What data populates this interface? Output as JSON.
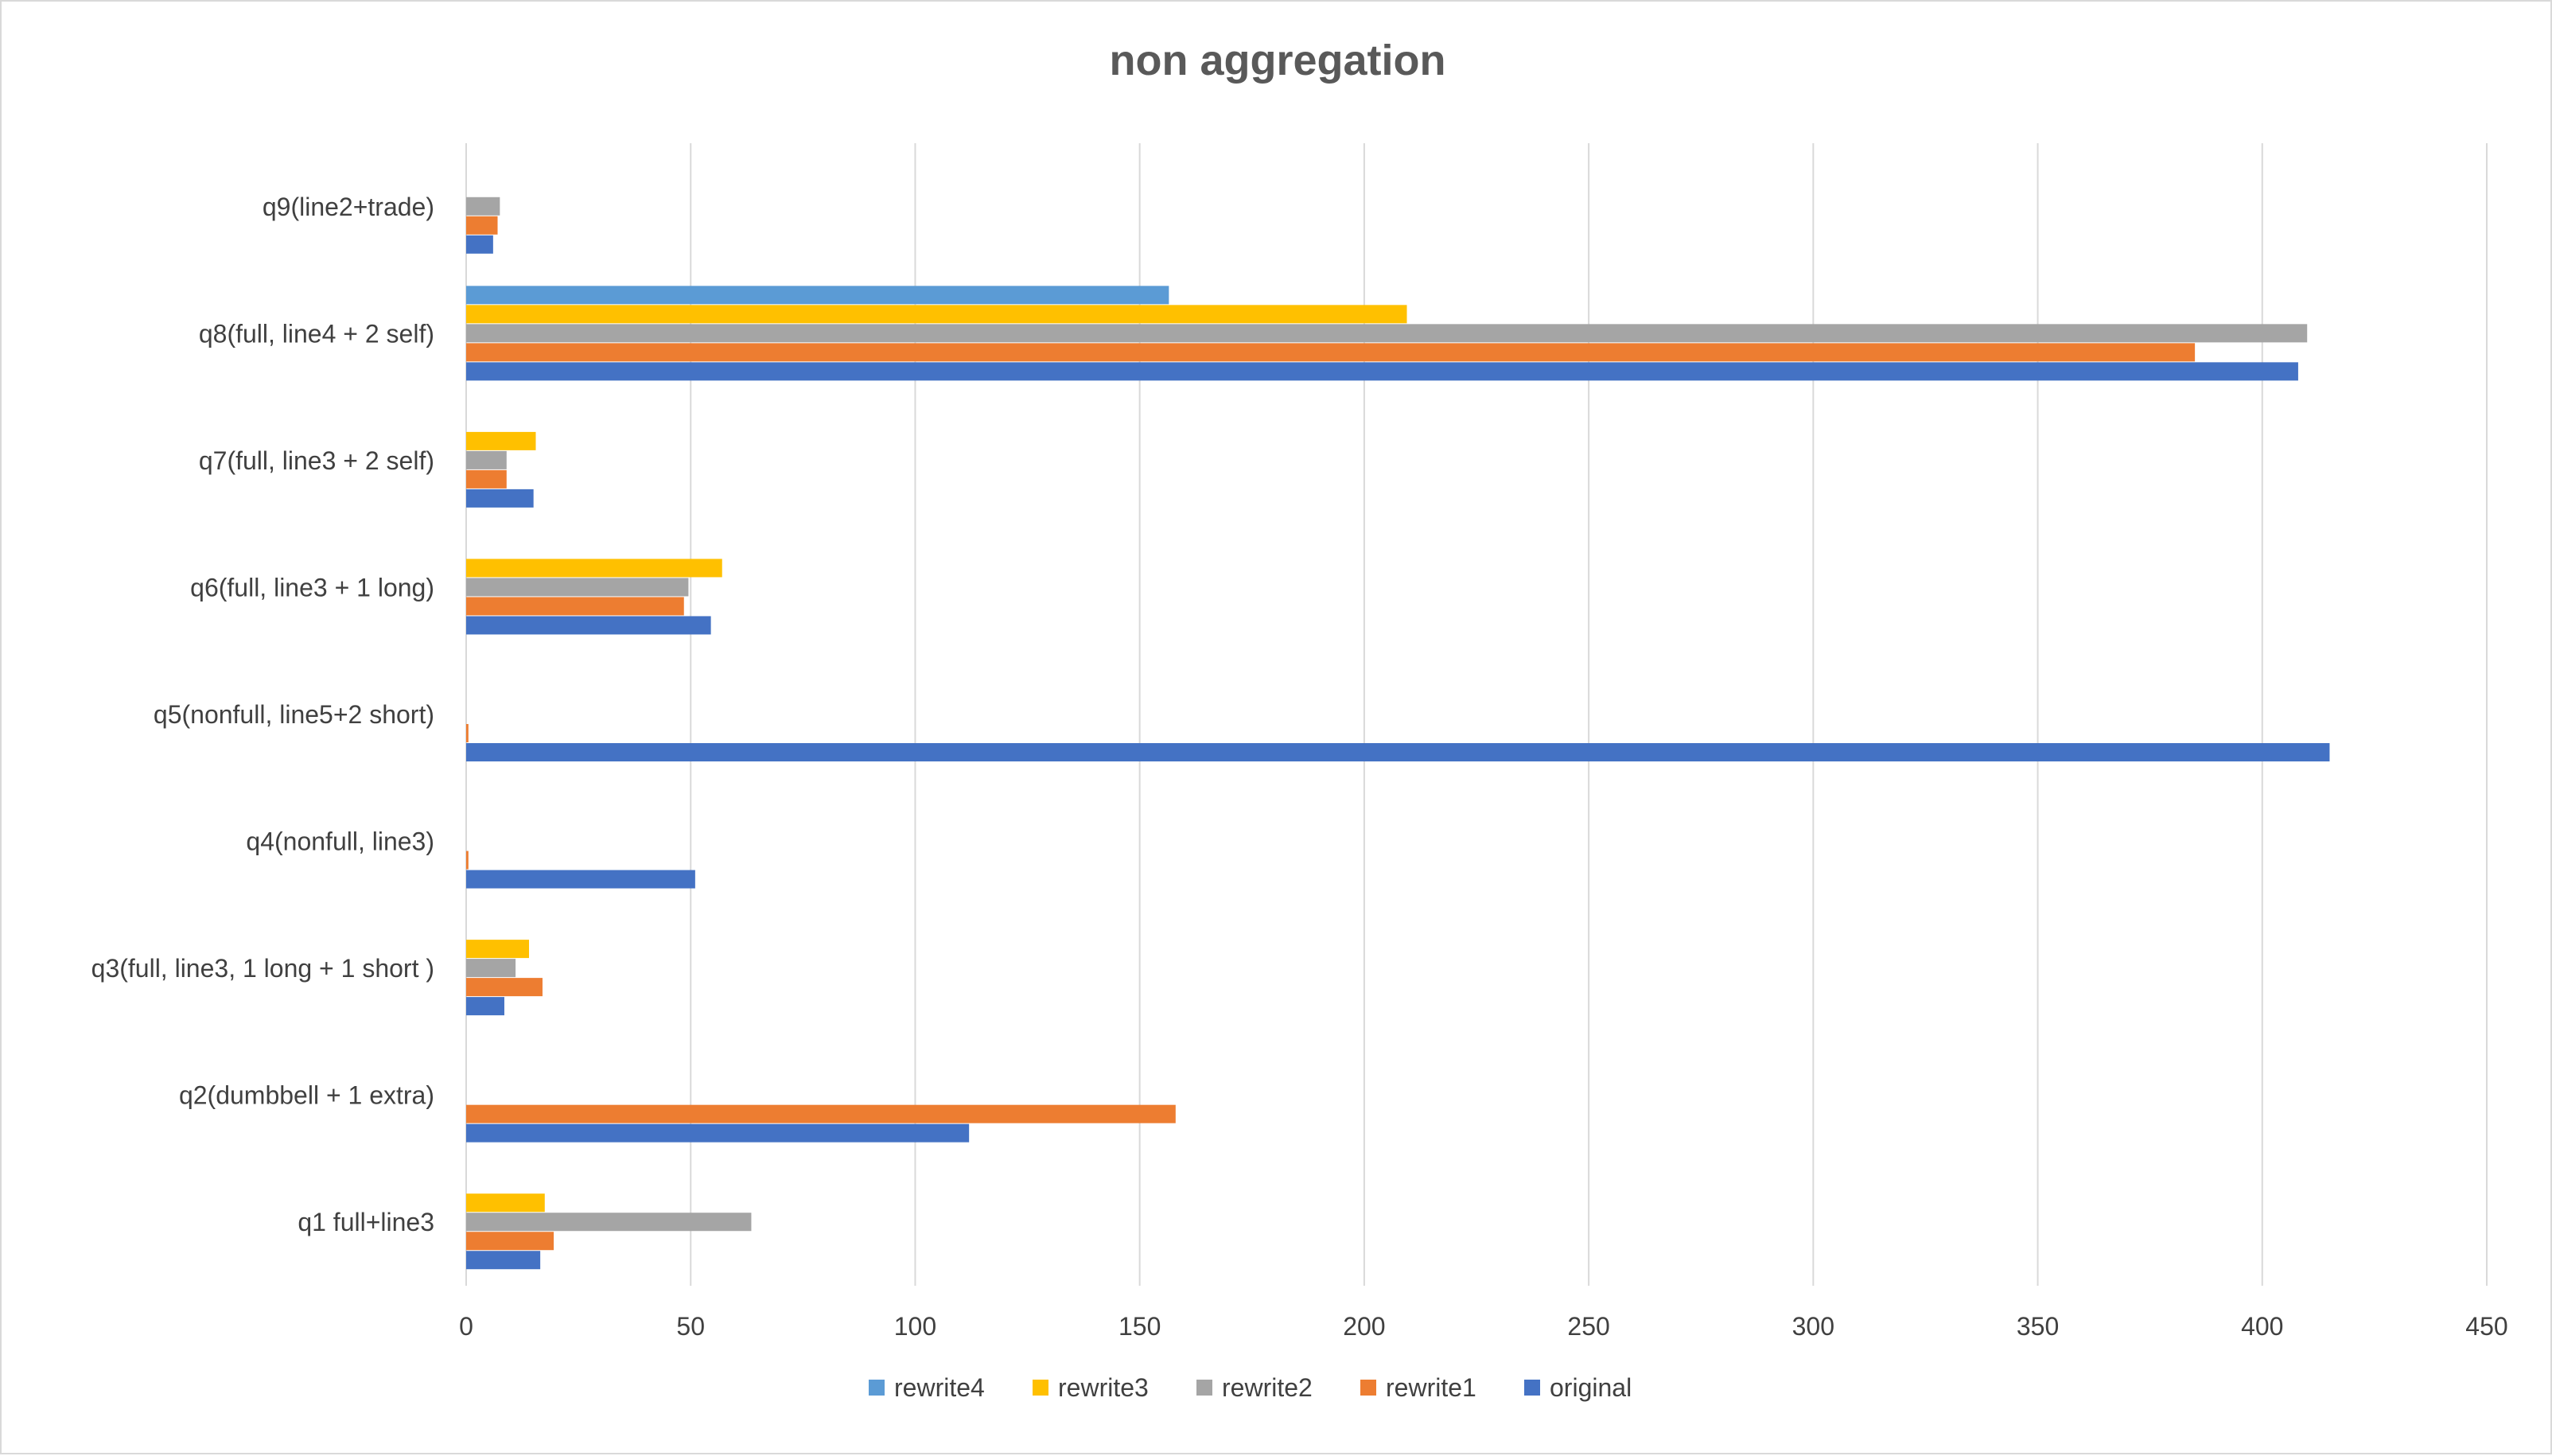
{
  "chart_data": {
    "type": "bar",
    "orientation": "horizontal",
    "title": "non aggregation",
    "xlabel": "",
    "ylabel": "",
    "xlim": [
      0,
      450
    ],
    "ticks": [
      0,
      50,
      100,
      150,
      200,
      250,
      300,
      350,
      400,
      450
    ],
    "grid": true,
    "legend_position": "bottom",
    "categories": [
      "q1 full+line3",
      "q2(dumbbell + 1 extra)",
      "q3(full, line3, 1 long + 1 short )",
      "q4(nonfull, line3)",
      "q5(nonfull, line5+2 short)",
      "q6(full, line3 + 1 long)",
      "q7(full, line3 + 2 self)",
      "q8(full, line4 + 2 self)",
      "q9(line2+trade)"
    ],
    "series": [
      {
        "name": "original",
        "color": "#4472C4",
        "values": [
          16.5,
          112,
          8.5,
          51,
          415,
          54.5,
          15,
          408,
          6
        ]
      },
      {
        "name": "rewrite1",
        "color": "#ED7D31",
        "values": [
          19.5,
          158,
          17,
          0.5,
          0.5,
          48.5,
          9,
          385,
          7
        ]
      },
      {
        "name": "rewrite2",
        "color": "#A5A5A5",
        "values": [
          63.5,
          0,
          11,
          0,
          0,
          49.5,
          9,
          410,
          7.5
        ]
      },
      {
        "name": "rewrite3",
        "color": "#FFC000",
        "values": [
          17.5,
          0,
          14,
          0,
          0,
          57,
          15.5,
          209.5,
          0
        ]
      },
      {
        "name": "rewrite4",
        "color": "#5B9BD5",
        "values": [
          0,
          0,
          0,
          0,
          0,
          0,
          0,
          156.5,
          0
        ]
      }
    ],
    "legend_order": [
      "rewrite4",
      "rewrite3",
      "rewrite2",
      "rewrite1",
      "original"
    ]
  }
}
